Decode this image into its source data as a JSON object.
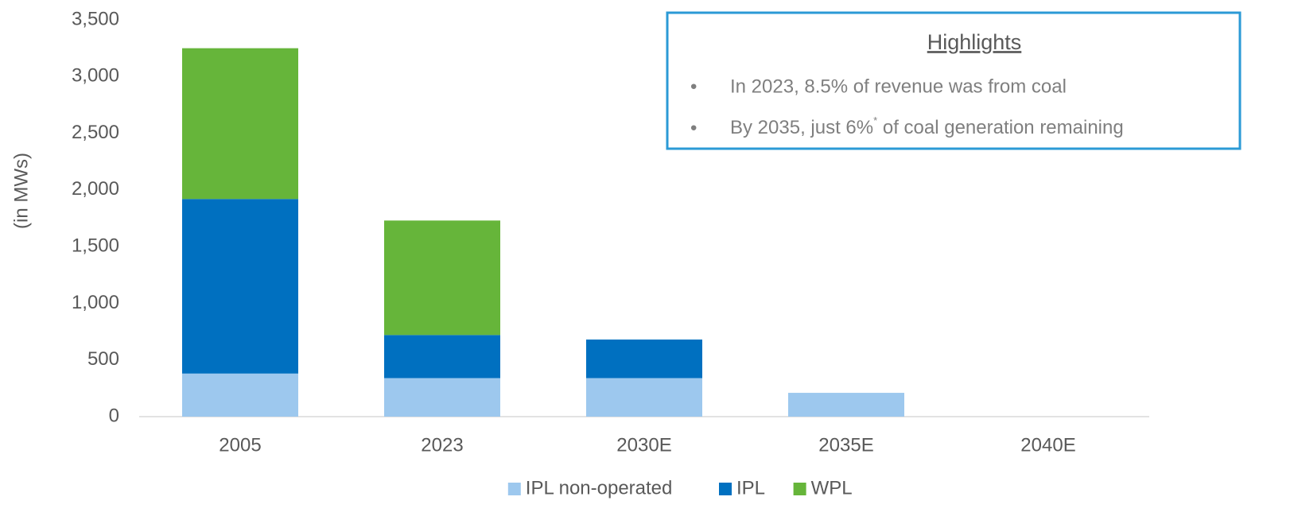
{
  "chart_data": {
    "type": "stacked_bar",
    "y_label": "(in MWs)",
    "categories": [
      "2005",
      "2023",
      "2030E",
      "2035E",
      "2040E"
    ],
    "series": [
      {
        "name": "IPL non-operated",
        "color": "#9dc8ee",
        "values": [
          380,
          340,
          340,
          210,
          0
        ]
      },
      {
        "name": "IPL",
        "color": "#0070c0",
        "values": [
          1540,
          380,
          340,
          0,
          0
        ]
      },
      {
        "name": "WPL",
        "color": "#66b53a",
        "values": [
          1330,
          1010,
          0,
          0,
          0
        ]
      }
    ],
    "ylim": [
      0,
      3500
    ],
    "yticks": [
      0,
      500,
      {
        "value": 1000,
        "label": "1,000"
      },
      {
        "value": 1500,
        "label": "1,500"
      },
      {
        "value": 2000,
        "label": "2,000"
      },
      {
        "value": 2500,
        "label": "2,500"
      },
      {
        "value": 3000,
        "label": "3,000"
      },
      {
        "value": 3500,
        "label": "3,500"
      }
    ],
    "grid": false,
    "legend": "bottom",
    "highlights": {
      "title": "Highlights",
      "bullets": [
        {
          "text": "In 2023, 8.5% of revenue was from coal"
        },
        {
          "text": "By 2035, just 6%",
          "sup": "*",
          "rest": " of coal generation remaining"
        }
      ]
    }
  }
}
